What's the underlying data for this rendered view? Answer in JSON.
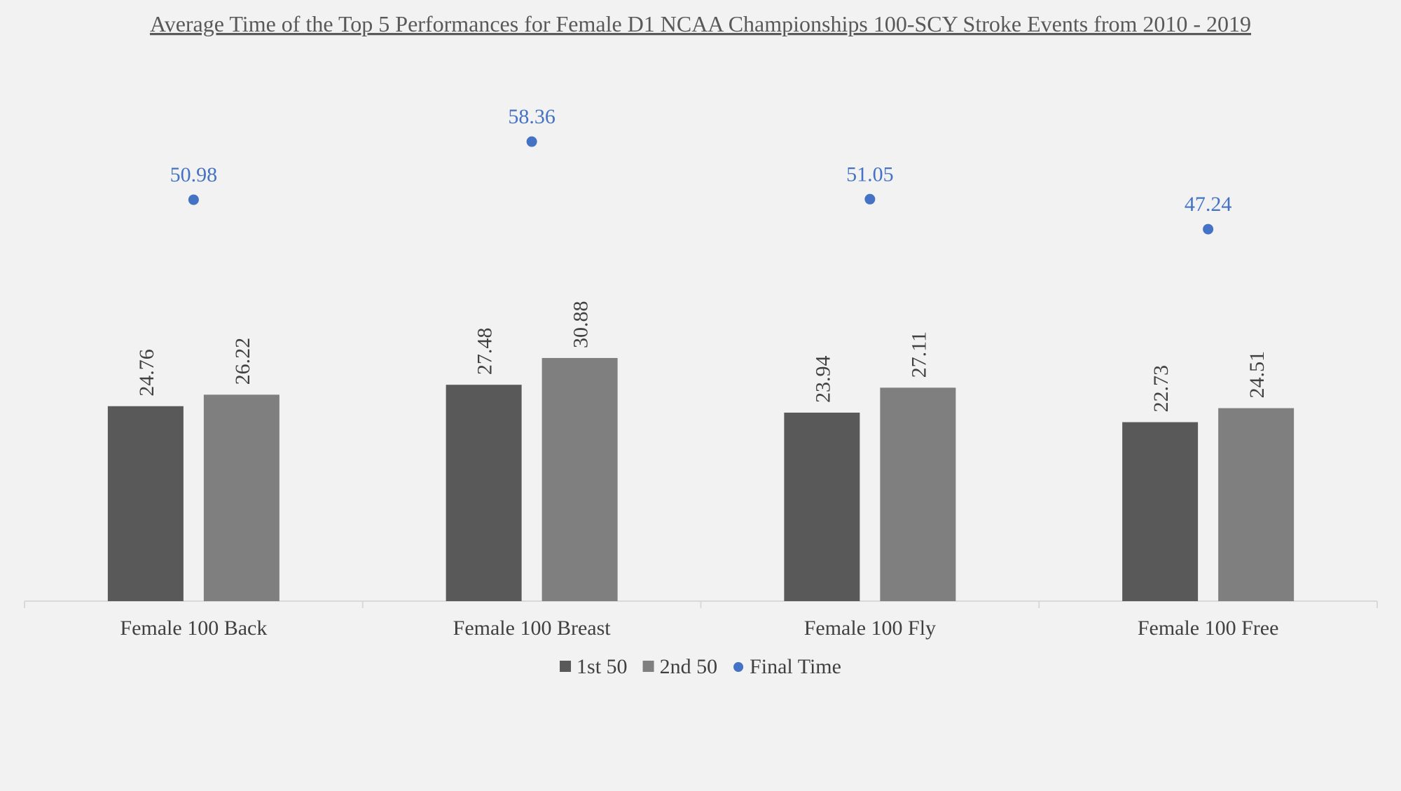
{
  "chart_data": {
    "type": "bar",
    "title": "Average Time of the Top 5 Performances for Female D1 NCAA Championships 100-SCY Stroke Events from 2010 - 2019",
    "categories": [
      "Female 100 Back",
      "Female 100 Breast",
      "Female 100 Fly",
      "Female 100 Free"
    ],
    "series": [
      {
        "name": "1st 50",
        "kind": "bar",
        "color": "#595959",
        "values": [
          24.76,
          27.48,
          23.94,
          22.73
        ]
      },
      {
        "name": "2nd 50",
        "kind": "bar",
        "color": "#7f7f7f",
        "values": [
          26.22,
          30.88,
          27.11,
          24.51
        ]
      },
      {
        "name": "Final Time",
        "kind": "scatter",
        "color": "#4472c4",
        "values": [
          50.98,
          58.36,
          51.05,
          47.24
        ]
      }
    ],
    "value_labels": {
      "1st 50": [
        "24.76",
        "27.48",
        "23.94",
        "22.73"
      ],
      "2nd 50": [
        "26.22",
        "30.88",
        "27.11",
        "24.51"
      ],
      "Final Time": [
        "50.98",
        "58.36",
        "51.05",
        "47.24"
      ]
    },
    "ylim": [
      0,
      63
    ],
    "grid": false,
    "y_axis_visible": false,
    "legend_position": "bottom"
  }
}
